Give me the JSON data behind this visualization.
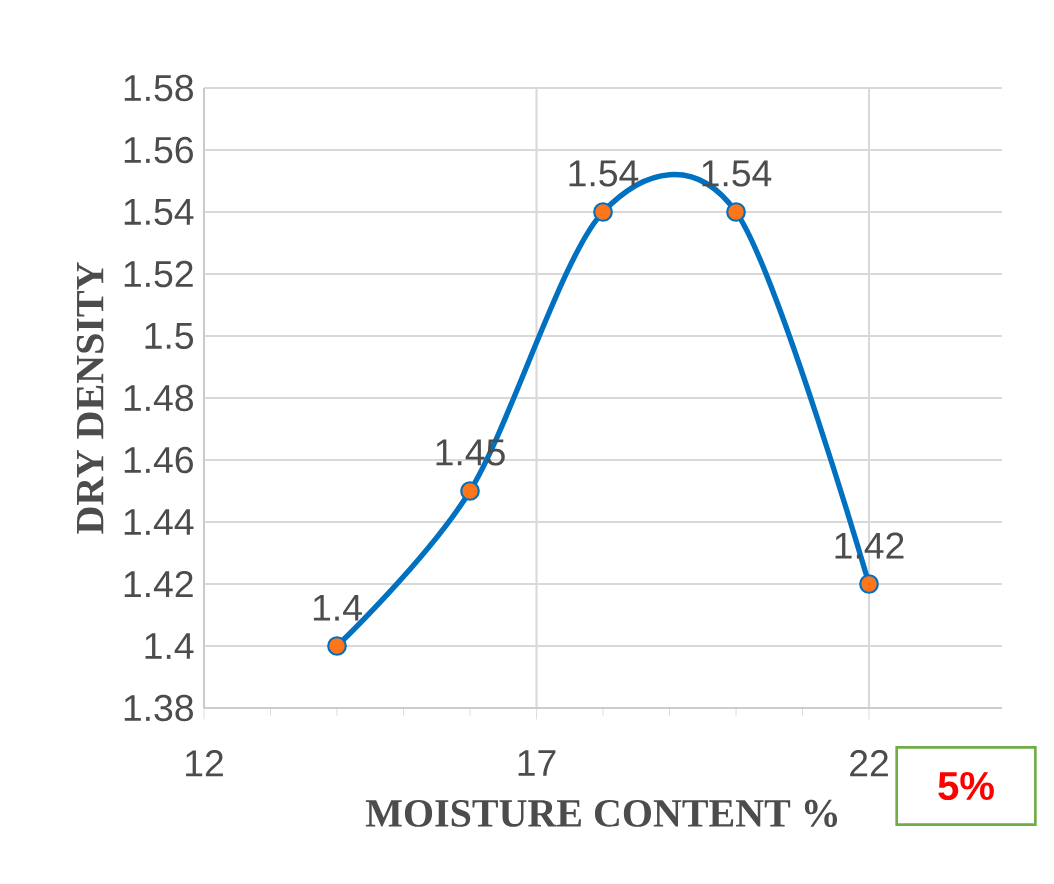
{
  "chart_data": {
    "type": "line",
    "xlabel": "MOISTURE CONTENT %",
    "ylabel": "DRY DENSITY",
    "x": [
      14,
      16,
      18,
      20,
      22
    ],
    "series": [
      {
        "color": "#0070c0",
        "values": [
          1.4,
          1.45,
          1.54,
          1.54,
          1.42
        ]
      }
    ],
    "xlim": [
      12,
      24
    ],
    "xticks": [
      12,
      17,
      22
    ],
    "ylim": [
      1.38,
      1.58
    ],
    "yticks": [
      1.38,
      1.4,
      1.42,
      1.44,
      1.46,
      1.48,
      1.5,
      1.52,
      1.54,
      1.56,
      1.58
    ],
    "grid": true,
    "marker": "circle",
    "data_labels": true,
    "annotations": [
      "5%"
    ]
  }
}
